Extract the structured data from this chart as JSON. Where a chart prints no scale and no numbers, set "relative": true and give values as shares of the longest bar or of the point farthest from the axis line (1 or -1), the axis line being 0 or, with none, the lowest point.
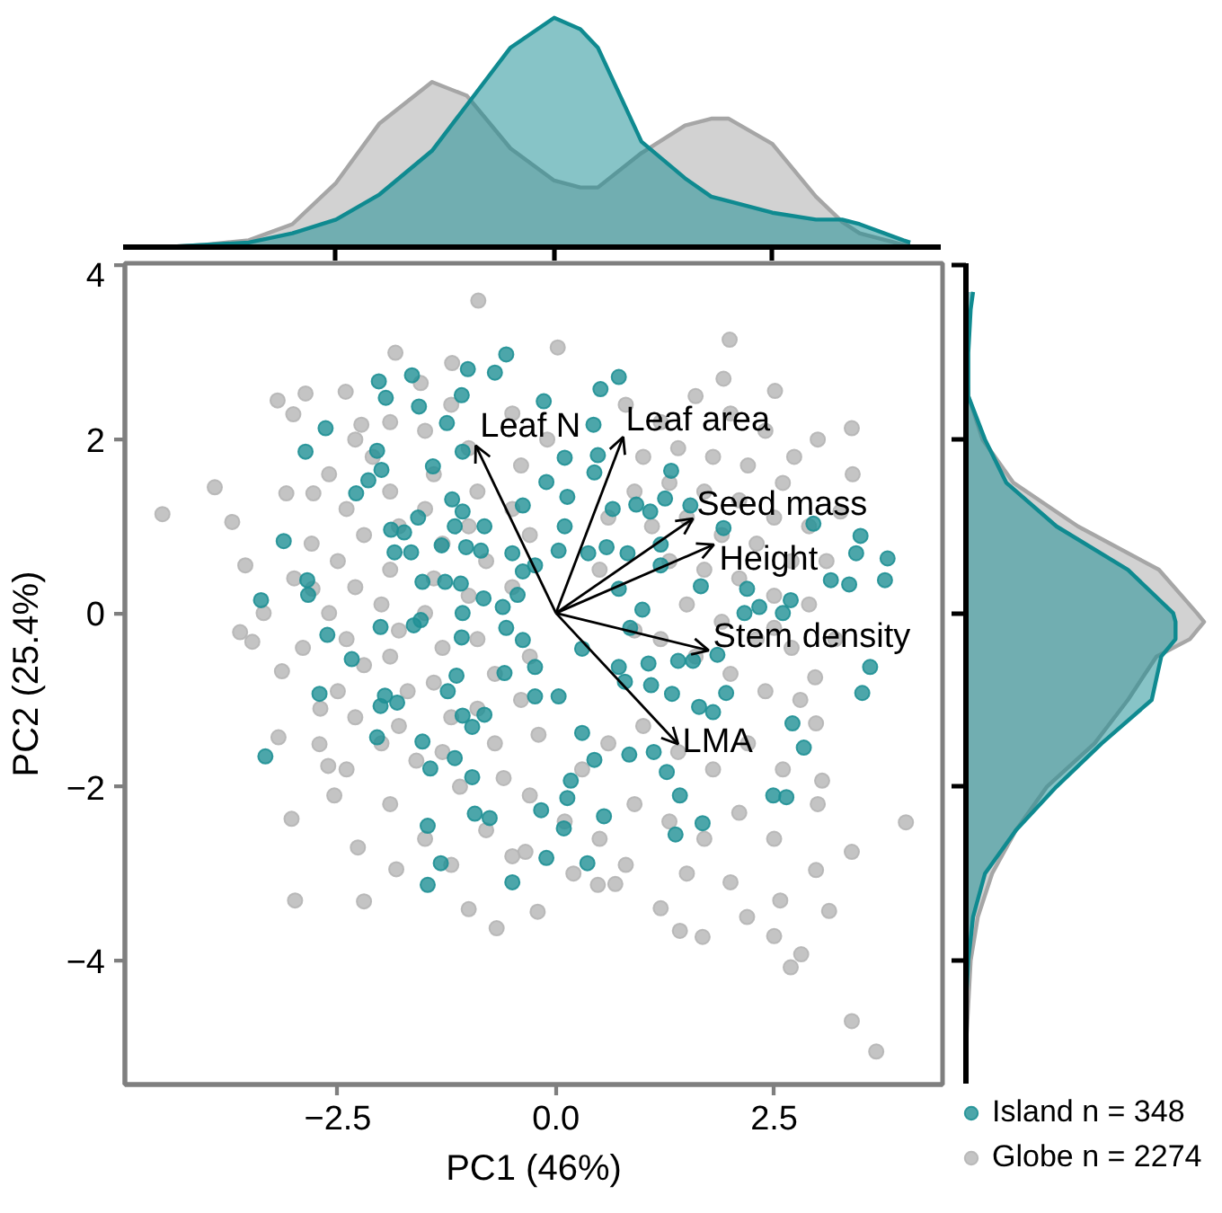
{
  "chart_data": [
    {
      "type": "area",
      "relative": true,
      "tick_labels": false,
      "xlim": [
        -4.94,
        4.43
      ],
      "xticks": [
        -2.5,
        0,
        2.5
      ],
      "x": [
        -4.46,
        -4.0,
        -3.5,
        -3.0,
        -2.5,
        -2.0,
        -1.4,
        -1.0,
        -0.5,
        0.0,
        0.3,
        0.5,
        1.0,
        1.5,
        1.8,
        2.0,
        2.5,
        3.0,
        3.3,
        3.5,
        4.0,
        4.08
      ],
      "series": [
        {
          "color": "#a6a6a6",
          "values": [
            0.0,
            0.01,
            0.03,
            0.1,
            0.28,
            0.54,
            0.72,
            0.66,
            0.43,
            0.29,
            0.26,
            0.26,
            0.41,
            0.53,
            0.56,
            0.56,
            0.45,
            0.22,
            0.11,
            0.06,
            0.01,
            0.01
          ]
        },
        {
          "color": "#0f8a90",
          "values": [
            0.0,
            0.01,
            0.02,
            0.06,
            0.12,
            0.23,
            0.42,
            0.62,
            0.87,
            1.0,
            0.95,
            0.87,
            0.46,
            0.3,
            0.22,
            0.2,
            0.15,
            0.12,
            0.12,
            0.1,
            0.03,
            0.02
          ]
        }
      ]
    },
    {
      "type": "scatter",
      "xlabel": "PC1 (46%)",
      "ylabel": "PC2 (25.4%)",
      "marker": "circle",
      "legend": "bottom right",
      "xlim": [
        -4.94,
        4.43
      ],
      "ylim": [
        -5.43,
        4.03
      ],
      "xticks": [
        -2.5,
        {
          "value": 0,
          "label": "0.0"
        },
        2.5
      ],
      "yticks": [
        -4,
        -2,
        0,
        2,
        4
      ],
      "series": [
        {
          "name": "Island n = 348",
          "color": "#1f9095",
          "x": [
            -3.38,
            -3.33,
            -3.12,
            -2.85,
            -2.84,
            -2.87,
            -2.64,
            -2.71,
            -2.62,
            -2.34,
            -2.29,
            -2.15,
            -2.05,
            -2.03,
            -1.95,
            -1.65,
            -1.57,
            -1.25,
            -1.08,
            -1.01,
            -0.7,
            -0.57,
            -1.07,
            -1.41,
            -2.0,
            -1.89,
            -1.74,
            -1.85,
            -1.66,
            -1.53,
            -1.31,
            -1.58,
            -1.19,
            -1.16,
            -1.07,
            -0.82,
            -1.03,
            -0.86,
            -1.27,
            -1.09,
            -1.07,
            -1.08,
            -1.55,
            -1.63,
            -2.01,
            -1.96,
            -2.01,
            -1.82,
            -2.05,
            -1.53,
            -1.24,
            -1.14,
            -1.07,
            -0.96,
            -0.82,
            -1.16,
            -1.44,
            -0.96,
            -1.47,
            -1.32,
            -1.47,
            -0.5,
            -0.93,
            -0.76,
            -0.59,
            -0.83,
            -0.61,
            -0.57,
            -0.44,
            -0.38,
            -0.38,
            -0.5,
            -0.38,
            0.72,
            0.51,
            -0.14,
            0.43,
            0.1,
            0.44,
            1.32,
            0.13,
            0.65,
            0.92,
            1.08,
            1.25,
            1.54,
            1.92,
            2.95,
            3.49,
            3.8,
            3.77,
            3.44,
            3.36,
            3.15,
            3.6,
            3.51,
            2.6,
            2.69,
            2.16,
            2.33,
            1.66,
            2.19,
            1.85,
            1.95,
            1.64,
            1.8,
            2.71,
            2.84,
            2.49,
            2.64,
            1.68,
            1.37,
            1.42,
            1.12,
            1.27,
            0.84,
            0.55,
            0.36,
            -0.11,
            0.09,
            -0.17,
            0.13,
            0.44,
            0.17,
            1.06,
            1.33,
            1.4,
            1.57,
            0.72,
            0.79,
            1.09,
            0.3,
            0.03,
            -0.24,
            -0.24,
            0.3,
            0.85,
            0.99,
            0.37,
            0.03,
            -0.24,
            0.58,
            0.82,
            0.72,
            1.2,
            0.1,
            -0.11,
            0.48,
            1.2
          ],
          "values": [
            0.15,
            -1.65,
            0.83,
            0.38,
            0.21,
            1.86,
            2.13,
            -0.93,
            -0.25,
            -0.53,
            1.38,
            1.53,
            1.87,
            2.67,
            2.48,
            2.74,
            2.38,
            2.19,
            2.51,
            2.81,
            2.77,
            2.98,
            1.86,
            1.69,
            1.65,
            0.96,
            0.93,
            0.7,
            0.7,
            0.36,
            0.78,
            1.1,
            1.31,
            1.0,
            1.17,
            1.0,
            0.76,
            0.72,
            0.36,
            0.34,
            0.0,
            -0.28,
            -0.08,
            -0.14,
            -0.16,
            -0.95,
            -1.07,
            -1.03,
            -1.43,
            -1.48,
            -0.9,
            -0.72,
            -1.18,
            -1.31,
            -1.17,
            -1.67,
            -1.79,
            -1.89,
            -2.45,
            -2.88,
            -3.13,
            -3.1,
            -2.31,
            -2.36,
            -0.69,
            0.17,
            0.07,
            -0.17,
            0.21,
            -0.31,
            1.24,
            0.69,
            0.48,
            2.72,
            2.58,
            2.44,
            2.17,
            1.79,
            1.62,
            1.64,
            1.34,
            1.2,
            1.25,
            1.17,
            1.32,
            1.24,
            0.98,
            1.03,
            0.89,
            0.63,
            0.38,
            0.69,
            0.33,
            0.38,
            -0.62,
            -0.92,
            0.0,
            0.15,
            0.0,
            0.07,
            0.31,
            0.28,
            -0.48,
            -0.92,
            -1.08,
            -1.14,
            -1.27,
            -1.55,
            -2.1,
            -2.12,
            -2.42,
            -2.55,
            -2.1,
            -1.6,
            -1.83,
            -1.63,
            -2.34,
            -2.88,
            -2.82,
            -2.48,
            -2.27,
            -2.13,
            -1.69,
            -1.93,
            -0.58,
            -0.93,
            -0.55,
            -0.55,
            -0.62,
            -0.79,
            -0.83,
            -1.38,
            -0.96,
            -0.96,
            -0.62,
            -0.41,
            -0.17,
            0.04,
            0.69,
            0.72,
            0.55,
            0.76,
            0.69,
            0.28,
            0.55,
            1.0,
            1.51,
            1.82,
            0.79
          ]
        },
        {
          "name": "Globe n = 2274",
          "color": "#b5b5b5",
          "x": [
            -4.51,
            -3.91,
            -3.71,
            -3.62,
            -3.48,
            -3.35,
            -3.56,
            -3.19,
            -3.01,
            -2.87,
            -2.41,
            -1.84,
            -1.19,
            -0.89,
            -3.03,
            -2.99,
            -2.2,
            -2.27,
            -1.83,
            -1.0,
            -0.68,
            -3.14,
            -3.18,
            -2.71,
            -2.61,
            -2.54,
            -2.79,
            -3.09,
            -2.78,
            -2.23,
            -1.55,
            0.02,
            1.99,
            1.92,
            2.51,
            3.39,
            2.73,
            3.26,
            2.97,
            4.01,
            3.39,
            3.13,
            2.81,
            2.69,
            3.39,
            3.67,
            1.68,
            1.42,
            2.5,
            2.19,
            1.2,
            -0.21,
            0.48,
            0.68,
            2.57,
            2.98,
            3.05,
            2.98,
            2.5,
            -0.35,
            -2.6,
            -2.4,
            -2.2,
            -2.5,
            -2.3,
            -2.6,
            -2.4,
            -2.2,
            -2.5,
            -2.3,
            -2.0,
            -2.1,
            -1.9,
            -1.8,
            -1.9,
            -2.0,
            -1.8,
            -1.9,
            -1.7,
            -1.8,
            -1.6,
            -1.5,
            -1.4,
            -1.5,
            -1.3,
            -1.4,
            -1.5,
            -1.3,
            -1.4,
            -1.2,
            -1.3,
            -1.1,
            -1.0,
            -0.9,
            -1.0,
            -0.8,
            -1.0,
            -0.9,
            -0.7,
            -0.9,
            -0.7,
            -0.6,
            -0.5,
            -0.4,
            -0.5,
            -0.3,
            -0.5,
            -0.3,
            -0.4,
            -0.2,
            -0.3,
            -2.8,
            -2.9,
            -3.0,
            -2.7,
            -2.4,
            -1.9,
            -1.5,
            -1.9,
            -2.3,
            -1.2,
            -0.1,
            -0.8,
            0.8,
            1.2,
            1.6,
            2.0,
            2.4,
            1.0,
            1.4,
            1.8,
            2.2,
            2.6,
            0.9,
            1.3,
            1.7,
            2.1,
            2.5,
            2.9,
            1.1,
            1.5,
            1.9,
            2.3,
            2.7,
            3.1,
            1.3,
            1.7,
            2.1,
            2.5,
            2.9,
            1.5,
            1.9,
            2.3,
            2.7,
            3.2,
            1.2,
            1.6,
            2.0,
            2.4,
            2.8,
            0.9,
            0.6,
            0.5,
            3.4,
            3.0,
            0.3,
            0.6,
            1.0,
            1.4,
            1.8,
            2.2,
            2.6,
            0.1,
            0.5,
            0.9,
            1.3,
            1.7,
            2.1,
            2.5,
            3.0,
            0.2,
            0.8,
            1.5,
            2.0,
            -0.5,
            -1.2
          ],
          "values": [
            1.14,
            1.45,
            1.05,
            -0.22,
            -0.33,
            0.0,
            0.55,
            2.45,
            2.29,
            2.53,
            2.55,
            3.0,
            2.88,
            3.6,
            -2.37,
            -3.31,
            -3.32,
            -2.7,
            -2.95,
            -3.41,
            -3.63,
            -0.67,
            -1.43,
            -1.51,
            -1.76,
            -2.1,
            0.28,
            1.38,
            1.38,
            2.17,
            2.65,
            3.06,
            3.15,
            2.7,
            2.56,
            2.13,
            1.8,
            1.17,
            -0.74,
            -2.41,
            -2.75,
            -3.43,
            -3.93,
            -4.08,
            -4.7,
            -5.05,
            -3.73,
            -3.66,
            -3.72,
            -3.5,
            -3.4,
            -3.44,
            -3.13,
            -3.12,
            -3.31,
            -2.96,
            -1.93,
            -1.27,
            -0.17,
            -2.75,
            1.6,
            1.2,
            0.9,
            0.6,
            0.3,
            0.0,
            -0.3,
            -0.6,
            -0.9,
            -1.2,
            -1.5,
            1.8,
            1.4,
            1.0,
            0.5,
            0.1,
            -0.2,
            -0.5,
            -0.9,
            -1.3,
            -1.7,
            2.1,
            1.6,
            1.2,
            0.8,
            0.4,
            0.0,
            -0.4,
            -0.8,
            -1.2,
            -1.6,
            -2.0,
            1.9,
            1.4,
            1.0,
            0.6,
            0.2,
            -0.3,
            -0.7,
            -1.1,
            -1.5,
            -1.9,
            2.3,
            1.7,
            1.2,
            0.9,
            0.3,
            -0.5,
            -1.0,
            -1.4,
            -2.1,
            0.8,
            -0.4,
            0.4,
            -1.1,
            -1.8,
            -2.2,
            -2.6,
            2.2,
            2.0,
            2.4,
            2.0,
            -2.5,
            2.4,
            2.2,
            2.5,
            2.3,
            2.1,
            1.8,
            1.9,
            1.8,
            1.7,
            1.5,
            1.4,
            1.5,
            1.4,
            1.3,
            1.1,
            1.0,
            1.0,
            1.1,
            0.9,
            0.8,
            0.6,
            0.6,
            0.6,
            0.5,
            0.4,
            0.2,
            0.1,
            0.1,
            -0.1,
            -0.3,
            -0.4,
            -0.3,
            -0.3,
            -0.5,
            -0.7,
            -0.9,
            -1.0,
            -0.2,
            1.1,
            0.5,
            1.6,
            2.0,
            -1.8,
            -1.5,
            -1.3,
            -1.6,
            -1.8,
            -1.5,
            -1.8,
            -2.4,
            -2.6,
            -2.2,
            -2.4,
            -2.6,
            -2.3,
            -2.6,
            -2.2,
            -3.0,
            -2.9,
            -3.0,
            -3.1,
            -2.8,
            -2.9
          ]
        }
      ],
      "annotations": [
        "Leaf N",
        "Leaf area",
        "Seed mass",
        "Height",
        "Stem density",
        "LMA"
      ]
    },
    {
      "type": "area",
      "orientation": "horizontal",
      "relative": true,
      "tick_labels": false,
      "ylim": [
        -5.43,
        4.03
      ],
      "yticks": [
        -4,
        -2,
        0,
        2,
        4
      ],
      "x": [
        3.7,
        3.5,
        3.0,
        2.5,
        2.0,
        1.5,
        1.0,
        0.5,
        0.0,
        -0.1,
        -0.3,
        -0.5,
        -1.0,
        -1.5,
        -2.0,
        -2.5,
        -3.0,
        -3.5,
        -4.0,
        -4.5,
        -5.0,
        -5.1
      ],
      "series": [
        {
          "color": "#a6a6a6",
          "values": [
            0.0,
            0.0,
            0.0,
            0.01,
            0.07,
            0.2,
            0.47,
            0.81,
            0.97,
            1.0,
            0.94,
            0.8,
            0.68,
            0.54,
            0.34,
            0.21,
            0.11,
            0.05,
            0.02,
            0.01,
            0.0,
            0.0
          ]
        },
        {
          "color": "#0f8a90",
          "values": [
            0.03,
            0.02,
            0.01,
            0.01,
            0.08,
            0.17,
            0.38,
            0.68,
            0.87,
            0.88,
            0.88,
            0.82,
            0.78,
            0.57,
            0.38,
            0.21,
            0.08,
            0.03,
            0.01,
            0.0,
            0.0,
            0.0
          ]
        }
      ]
    }
  ]
}
